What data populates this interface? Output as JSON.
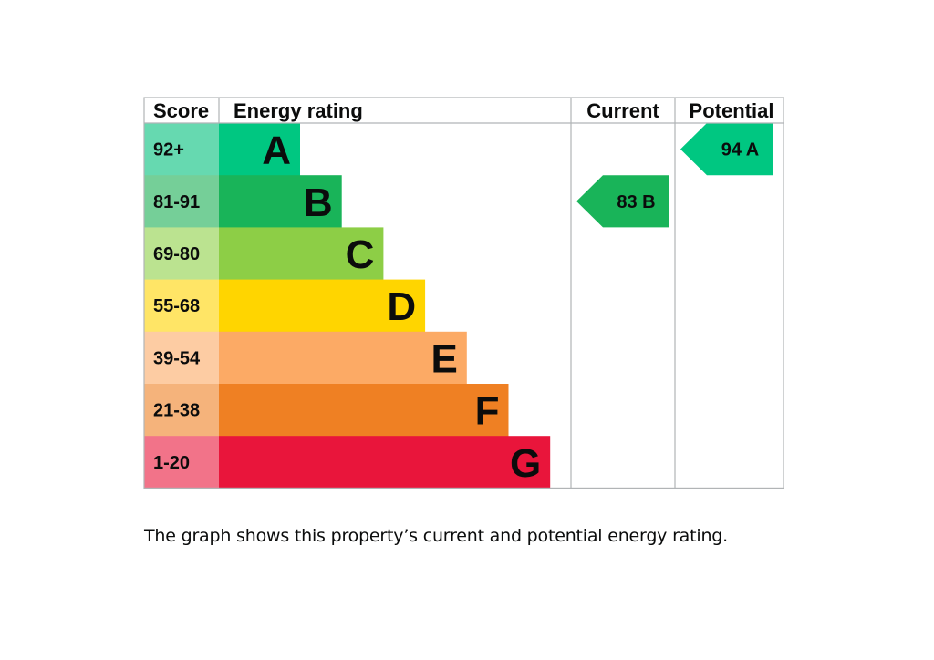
{
  "chart_data": {
    "type": "bar",
    "headers": {
      "score": "Score",
      "rating": "Energy rating",
      "current": "Current",
      "potential": "Potential"
    },
    "bands": [
      {
        "letter": "A",
        "score": "92+",
        "color": "#00c781",
        "score_bg": "#66d9b0"
      },
      {
        "letter": "B",
        "score": "81-91",
        "color": "#19b459",
        "score_bg": "#75cf98"
      },
      {
        "letter": "C",
        "score": "69-80",
        "color": "#8dce46",
        "score_bg": "#bbe390"
      },
      {
        "letter": "D",
        "score": "55-68",
        "color": "#ffd500",
        "score_bg": "#ffe566"
      },
      {
        "letter": "E",
        "score": "39-54",
        "color": "#fcaa65",
        "score_bg": "#fdcca3"
      },
      {
        "letter": "F",
        "score": "21-38",
        "color": "#ef8023",
        "score_bg": "#f5b37b"
      },
      {
        "letter": "G",
        "score": "1-20",
        "color": "#e9153b",
        "score_bg": "#f27389"
      }
    ],
    "current": {
      "value": 83,
      "band": "B",
      "label": "83  B"
    },
    "potential": {
      "value": 94,
      "band": "A",
      "label": "94  A"
    }
  },
  "caption": "The graph shows this property’s current and potential energy rating."
}
